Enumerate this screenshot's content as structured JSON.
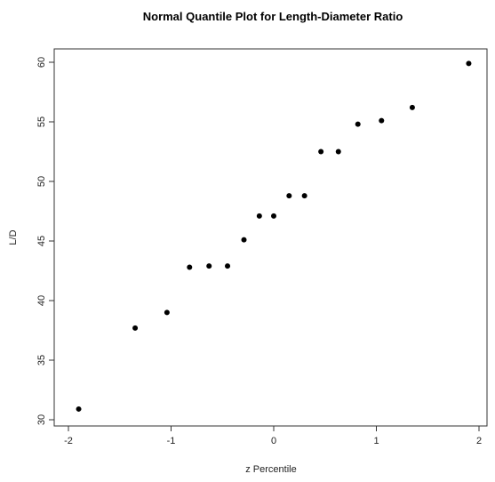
{
  "chart_data": {
    "type": "scatter",
    "title": "Normal Quantile Plot for Length-Diameter Ratio",
    "xlabel": "z Percentile",
    "ylabel": "L/D",
    "xlim": [
      -2,
      2
    ],
    "ylim": [
      30,
      60
    ],
    "xticks": [
      "-2",
      "-1",
      "0",
      "1",
      "2"
    ],
    "yticks": [
      "30",
      "35",
      "40",
      "45",
      "50",
      "55",
      "60"
    ],
    "grid": false,
    "points": [
      {
        "x": -1.9,
        "y": 30.9
      },
      {
        "x": -1.35,
        "y": 37.7
      },
      {
        "x": -1.04,
        "y": 39.0
      },
      {
        "x": -0.82,
        "y": 42.8
      },
      {
        "x": -0.63,
        "y": 42.9
      },
      {
        "x": -0.45,
        "y": 42.9
      },
      {
        "x": -0.29,
        "y": 45.1
      },
      {
        "x": -0.14,
        "y": 47.1
      },
      {
        "x": 0.0,
        "y": 47.1
      },
      {
        "x": 0.15,
        "y": 48.8
      },
      {
        "x": 0.3,
        "y": 48.8
      },
      {
        "x": 0.46,
        "y": 52.5
      },
      {
        "x": 0.63,
        "y": 52.5
      },
      {
        "x": 0.82,
        "y": 54.8
      },
      {
        "x": 1.05,
        "y": 55.1
      },
      {
        "x": 1.35,
        "y": 56.2
      },
      {
        "x": 1.9,
        "y": 59.9
      }
    ]
  }
}
